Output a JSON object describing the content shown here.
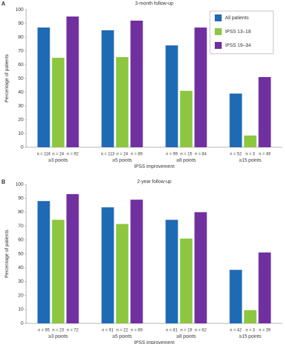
{
  "chart_data": [
    {
      "type": "bar",
      "panel": "A",
      "title": "3-month follow-up",
      "ylabel": "Percentage of patients",
      "xlabel": "IPSS improvement",
      "categories": [
        "≥3 points",
        "≥5 points",
        "≥8 points",
        "≥15 points"
      ],
      "series": [
        {
          "name": "All patients",
          "color": "#1f6ab5",
          "values": [
            87,
            85,
            74,
            39
          ],
          "n_labels": [
            "n = 116",
            "n = 113",
            "n = 99",
            "n = 52"
          ]
        },
        {
          "name": "IPSS 13–18",
          "color": "#8dc63f",
          "values": [
            65,
            65.5,
            41,
            8.5
          ],
          "n_labels": [
            "n = 24",
            "n = 24",
            "n = 15",
            "n = 3"
          ]
        },
        {
          "name": "IPSS 19–34",
          "color": "#7030a0",
          "values": [
            95,
            92,
            87,
            51
          ],
          "n_labels": [
            "n = 92",
            "n = 89",
            "n = 84",
            "n = 49"
          ]
        }
      ],
      "ylim": [
        0,
        100
      ],
      "yticks": [
        0,
        10,
        20,
        30,
        40,
        50,
        60,
        70,
        80,
        90,
        100
      ],
      "legend": "upper right"
    },
    {
      "type": "bar",
      "panel": "B",
      "title": "2-year follow-up",
      "ylabel": "Percentage of patients",
      "xlabel": "IPSS improvement",
      "categories": [
        "≥3 points",
        "≥5 points",
        "≥8 points",
        "≥15 points"
      ],
      "series": [
        {
          "color": "#1f6ab5",
          "values": [
            88,
            83.5,
            74.5,
            38.5
          ],
          "n_labels": [
            "n = 95",
            "n = 91",
            "n = 81",
            "n = 42"
          ]
        },
        {
          "color": "#8dc63f",
          "values": [
            74.5,
            71.5,
            61,
            9.5
          ],
          "n_labels": [
            "n = 23",
            "n = 22",
            "n = 19",
            "n = 3"
          ]
        },
        {
          "color": "#7030a0",
          "values": [
            93,
            89,
            80,
            51
          ],
          "n_labels": [
            "n = 72",
            "n = 69",
            "n = 62",
            "n = 39"
          ]
        }
      ],
      "ylim": [
        0,
        100
      ],
      "yticks": [
        0,
        10,
        20,
        30,
        40,
        50,
        60,
        70,
        80,
        90,
        100
      ]
    }
  ]
}
